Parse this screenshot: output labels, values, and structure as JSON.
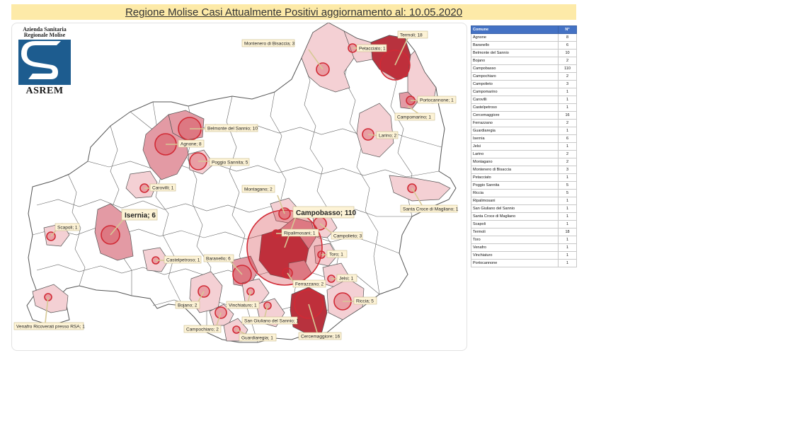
{
  "title": "Regione Molise Casi Attualmente Positivi aggiornamento al: 10.05.2020",
  "logo": {
    "line1": "Azienda Sanitaria",
    "line2": "Regionale Molise",
    "name": "ASREM"
  },
  "table": {
    "header_comune": "Comune",
    "header_n": "N°",
    "rows": [
      {
        "comune": "Agnone",
        "n": "8"
      },
      {
        "comune": "Baranello",
        "n": "6"
      },
      {
        "comune": "Belmonte del Sannio",
        "n": "10"
      },
      {
        "comune": "Bojano",
        "n": "2"
      },
      {
        "comune": "Campobasso",
        "n": "110"
      },
      {
        "comune": "Campochiaro",
        "n": "2"
      },
      {
        "comune": "Campolieto",
        "n": "3"
      },
      {
        "comune": "Campomarino",
        "n": "1"
      },
      {
        "comune": "Carovilli",
        "n": "1"
      },
      {
        "comune": "Castelpetroso",
        "n": "1"
      },
      {
        "comune": "Cercemaggiore",
        "n": "16"
      },
      {
        "comune": "Ferrazzano",
        "n": "2"
      },
      {
        "comune": "Guardiaregia",
        "n": "1"
      },
      {
        "comune": "Isernia",
        "n": "6"
      },
      {
        "comune": "Jelsi",
        "n": "1"
      },
      {
        "comune": "Larino",
        "n": "2"
      },
      {
        "comune": "Montagano",
        "n": "2"
      },
      {
        "comune": "Montenero di Bisaccia",
        "n": "3"
      },
      {
        "comune": "Petacciato",
        "n": "1"
      },
      {
        "comune": "Poggio Sannita",
        "n": "5"
      },
      {
        "comune": "Riccia",
        "n": "5"
      },
      {
        "comune": "Ripalimosani",
        "n": "1"
      },
      {
        "comune": "San Giuliano del Sannio",
        "n": "1"
      },
      {
        "comune": "Santa Croce di Magliano",
        "n": "1"
      },
      {
        "comune": "Scapoli",
        "n": "1"
      },
      {
        "comune": "Termoli",
        "n": "18"
      },
      {
        "comune": "Toro",
        "n": "1"
      },
      {
        "comune": "Venafro",
        "n": "1"
      },
      {
        "comune": "Vinchiaturo",
        "n": "1"
      },
      {
        "comune": "Portocannone",
        "n": "1"
      }
    ]
  },
  "map_labels": {
    "termoli": "Termoli; 18",
    "petacciato": "Petacciato; 1",
    "montenero": "Montenero di Bisaccia; 3",
    "portocannone": "Portocannone; 1",
    "campomarino": "Campomarino; 1",
    "belmonte": "Belmonte del Sannio; 10",
    "agnone": "Agnone; 8",
    "poggio": "Poggio Sannita; 5",
    "larino": "Larino; 2",
    "carovilli": "Carovilli; 1",
    "montagano": "Montagano; 2",
    "santacroce": "Santa Croce di Magliano; 1",
    "campobasso": "Campobasso; 110",
    "isernia": "Isernia; 6",
    "scapoli": "Scapoli; 1",
    "ripalimosani": "Ripalimosani; 1",
    "campolieto": "Campolieto; 3",
    "toro": "Toro; 1",
    "castelpetroso": "Castelpetroso; 1",
    "baranello": "Baranello; 6",
    "ferrazzano": "Ferrazzano; 2",
    "jelsi": "Jelsi; 1",
    "riccia": "Riccia; 5",
    "bojano": "Bojano; 2",
    "vinchiaturo": "Vinchiaturo; 1",
    "campochiaro": "Campochiaro; 2",
    "sangiuliano": "San Giuliano del Sannio; 1",
    "guardiaregia": "Guardiaregia; 1",
    "cercemaggiore": "Cercemaggiore; 16",
    "venafro": "Venafro Ricoverati presso RSA; 1"
  },
  "colors": {
    "region_fill": "#ffffff",
    "border": "#555555",
    "light_fill": "#f4d0d4",
    "mid_fill": "#e39aa4",
    "dark_fill": "#b8323e",
    "circle": "#d12a35",
    "label_bg": "#fdf3d6",
    "label_border": "#c9b98a"
  }
}
